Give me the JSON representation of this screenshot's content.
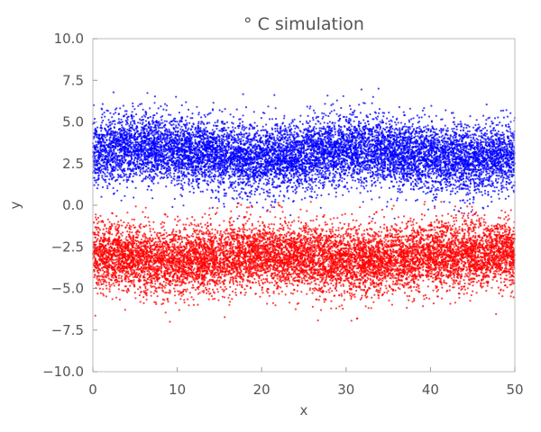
{
  "chart_data": {
    "type": "scatter",
    "title": "° C simulation",
    "xlabel": "x",
    "ylabel": "y",
    "xlim": [
      0,
      50
    ],
    "ylim": [
      -10,
      10
    ],
    "x_ticks": [
      "0",
      "10",
      "20",
      "30",
      "40",
      "50"
    ],
    "y_ticks": [
      "10.0",
      "7.5",
      "5.0",
      "2.5",
      "0.0",
      "−2.5",
      "−5.0",
      "−7.5",
      "−10.0"
    ],
    "grid": false,
    "legend": "none",
    "series": [
      {
        "color": "#0000ff",
        "x_range": [
          0,
          50
        ],
        "approx_count": 10000,
        "y_mean_profile": [
          [
            0,
            3.2
          ],
          [
            5,
            3.5
          ],
          [
            10,
            3.3
          ],
          [
            15,
            3.0
          ],
          [
            20,
            2.8
          ],
          [
            25,
            3.0
          ],
          [
            30,
            3.4
          ],
          [
            35,
            3.2
          ],
          [
            40,
            2.8
          ],
          [
            45,
            2.7
          ],
          [
            50,
            3.0
          ]
        ],
        "y_spread": 1.0,
        "y_range_observed": [
          -0.8,
          7.0
        ]
      },
      {
        "color": "#ff0000",
        "x_range": [
          0,
          50
        ],
        "approx_count": 10000,
        "y_mean_profile": [
          [
            0,
            -3.0
          ],
          [
            5,
            -3.2
          ],
          [
            10,
            -3.4
          ],
          [
            15,
            -3.2
          ],
          [
            20,
            -3.0
          ],
          [
            25,
            -3.1
          ],
          [
            30,
            -3.4
          ],
          [
            35,
            -3.3
          ],
          [
            40,
            -3.0
          ],
          [
            45,
            -2.9
          ],
          [
            50,
            -2.9
          ]
        ],
        "y_spread": 1.0,
        "y_range_observed": [
          -7.0,
          0.2
        ]
      }
    ]
  }
}
